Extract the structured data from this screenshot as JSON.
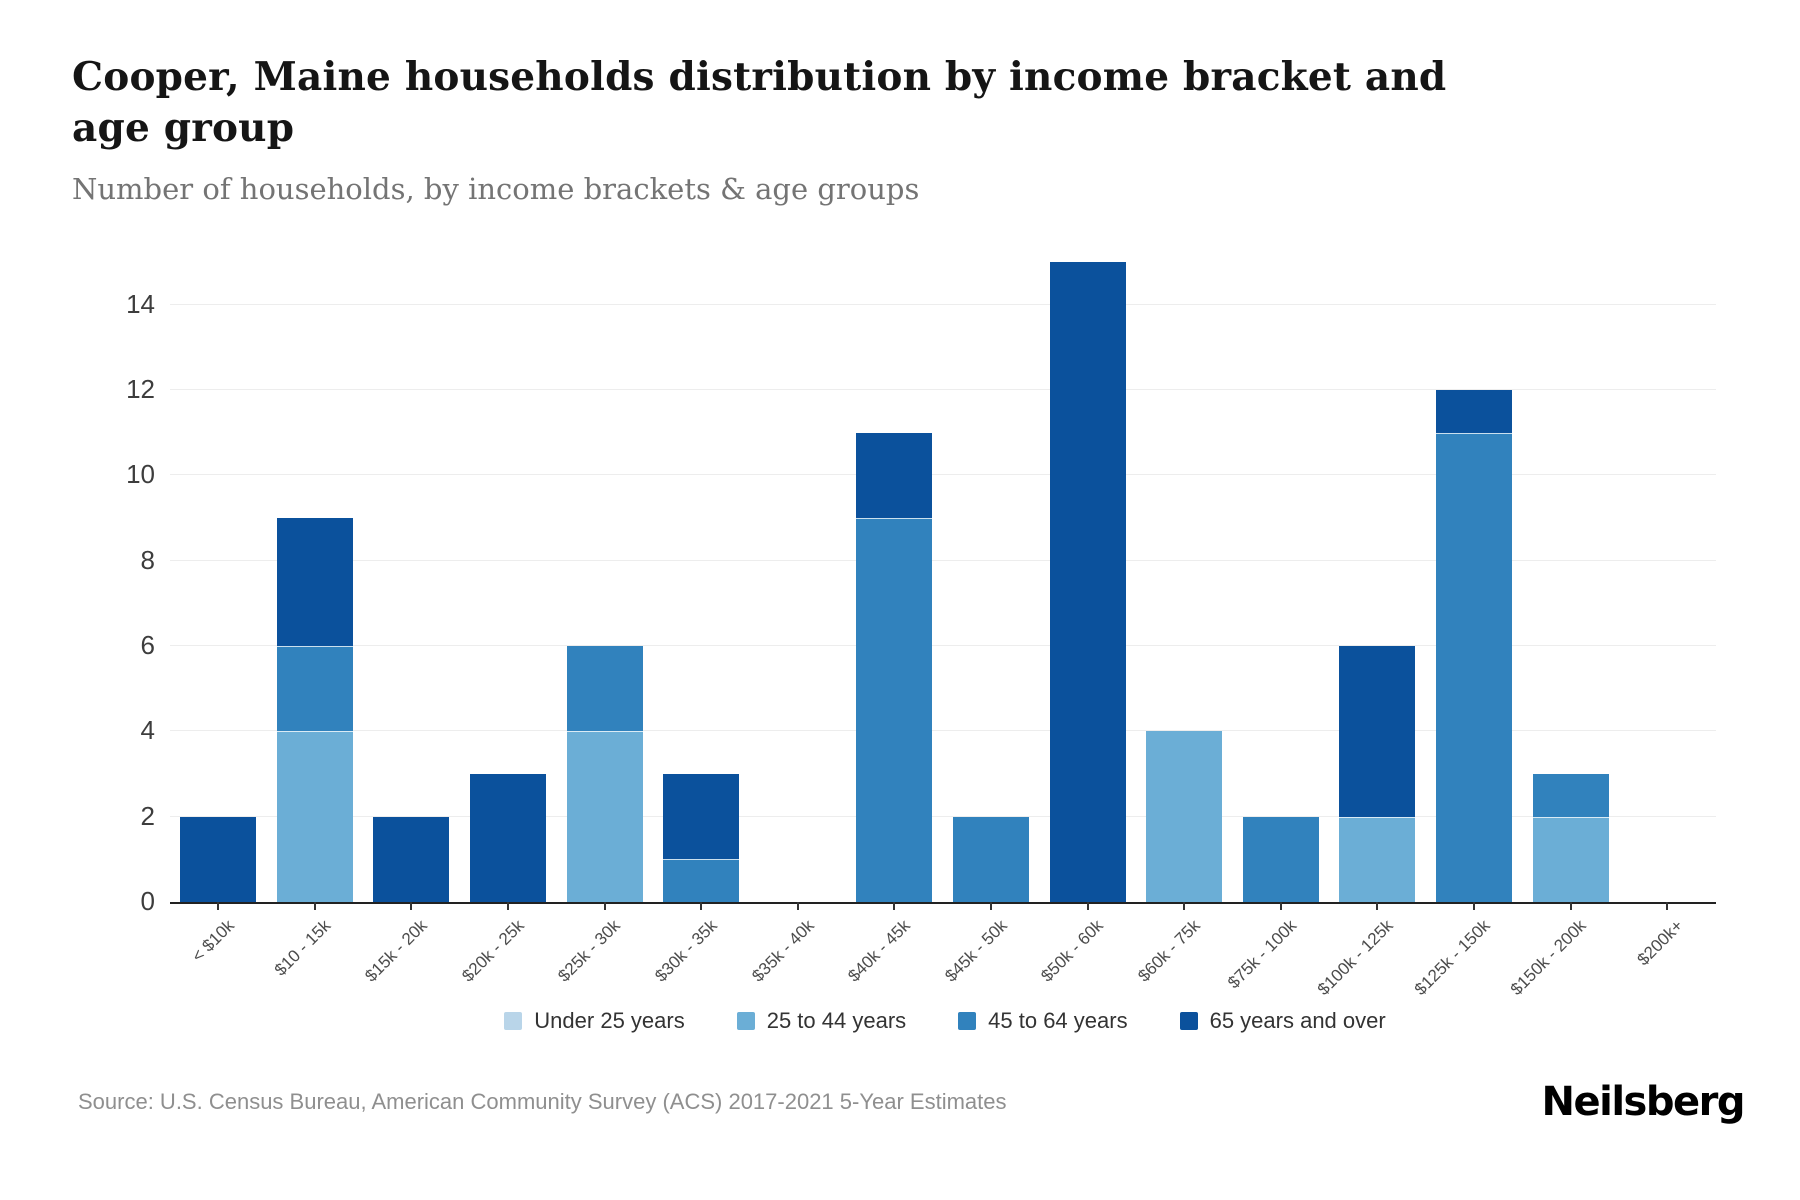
{
  "header": {
    "title": "Cooper, Maine households distribution by income bracket and age group",
    "subtitle": "Number of households, by income brackets & age groups"
  },
  "chart_data": {
    "type": "bar",
    "stacked": true,
    "title": "Cooper, Maine households distribution by income bracket and age group",
    "subtitle": "Number of households, by income brackets & age groups",
    "xlabel": "",
    "ylabel": "",
    "ylim": [
      0,
      15
    ],
    "yticks": [
      0,
      2,
      4,
      6,
      8,
      10,
      12,
      14
    ],
    "grid": true,
    "legend_position": "bottom",
    "categories": [
      "< $10k",
      "$10 - 15k",
      "$15k - 20k",
      "$20k - 25k",
      "$25k - 30k",
      "$30k - 35k",
      "$35k - 40k",
      "$40k - 45k",
      "$45k - 50k",
      "$50k - 60k",
      "$60k - 75k",
      "$75k - 100k",
      "$100k - 125k",
      "$125k - 150k",
      "$150k - 200k",
      "$200k+"
    ],
    "series": [
      {
        "name": "Under 25 years",
        "color": "#b9d5e9",
        "values": [
          0,
          0,
          0,
          0,
          0,
          0,
          0,
          0,
          0,
          0,
          0,
          0,
          0,
          0,
          0,
          0
        ]
      },
      {
        "name": "25 to 44 years",
        "color": "#6baed6",
        "values": [
          0,
          4,
          0,
          0,
          4,
          0,
          0,
          0,
          0,
          0,
          4,
          0,
          2,
          0,
          2,
          0
        ]
      },
      {
        "name": "45 to 64 years",
        "color": "#3182bd",
        "values": [
          0,
          2,
          0,
          0,
          2,
          1,
          0,
          9,
          2,
          0,
          0,
          2,
          0,
          11,
          1,
          0
        ]
      },
      {
        "name": "65 years and over",
        "color": "#0b519c",
        "values": [
          2,
          3,
          2,
          3,
          0,
          2,
          0,
          2,
          0,
          15,
          0,
          0,
          4,
          1,
          0,
          0
        ]
      }
    ],
    "totals": [
      2,
      9,
      2,
      3,
      6,
      3,
      0,
      11,
      2,
      15,
      4,
      2,
      6,
      12,
      3,
      0
    ]
  },
  "footer": {
    "source": "Source: U.S. Census Bureau, American Community Survey (ACS) 2017-2021 5-Year Estimates",
    "brand": "Neilsberg"
  },
  "colors": {
    "axis": "#222222",
    "gridline": "#ededed",
    "title_text": "#151515",
    "subtitle_text": "#747474",
    "tick_text": "#4c4c4c"
  }
}
